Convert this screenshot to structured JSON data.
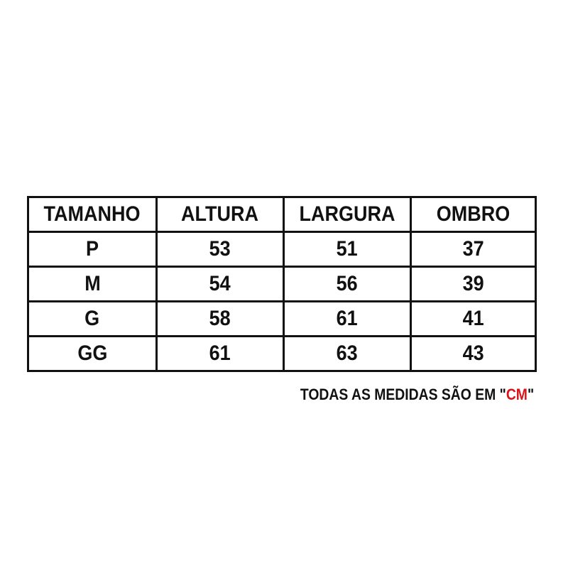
{
  "table": {
    "headers": [
      "TAMANHO",
      "ALTURA",
      "LARGURA",
      "OMBRO"
    ],
    "rows": [
      [
        "P",
        "53",
        "51",
        "37"
      ],
      [
        "M",
        "54",
        "56",
        "39"
      ],
      [
        "G",
        "58",
        "61",
        "41"
      ],
      [
        "GG",
        "61",
        "63",
        "43"
      ]
    ]
  },
  "note": {
    "prefix": "TODAS AS MEDIDAS SÃO EM \"",
    "unit": "CM",
    "suffix": "\""
  },
  "colors": {
    "text": "#111111",
    "accent": "#d9141b"
  }
}
